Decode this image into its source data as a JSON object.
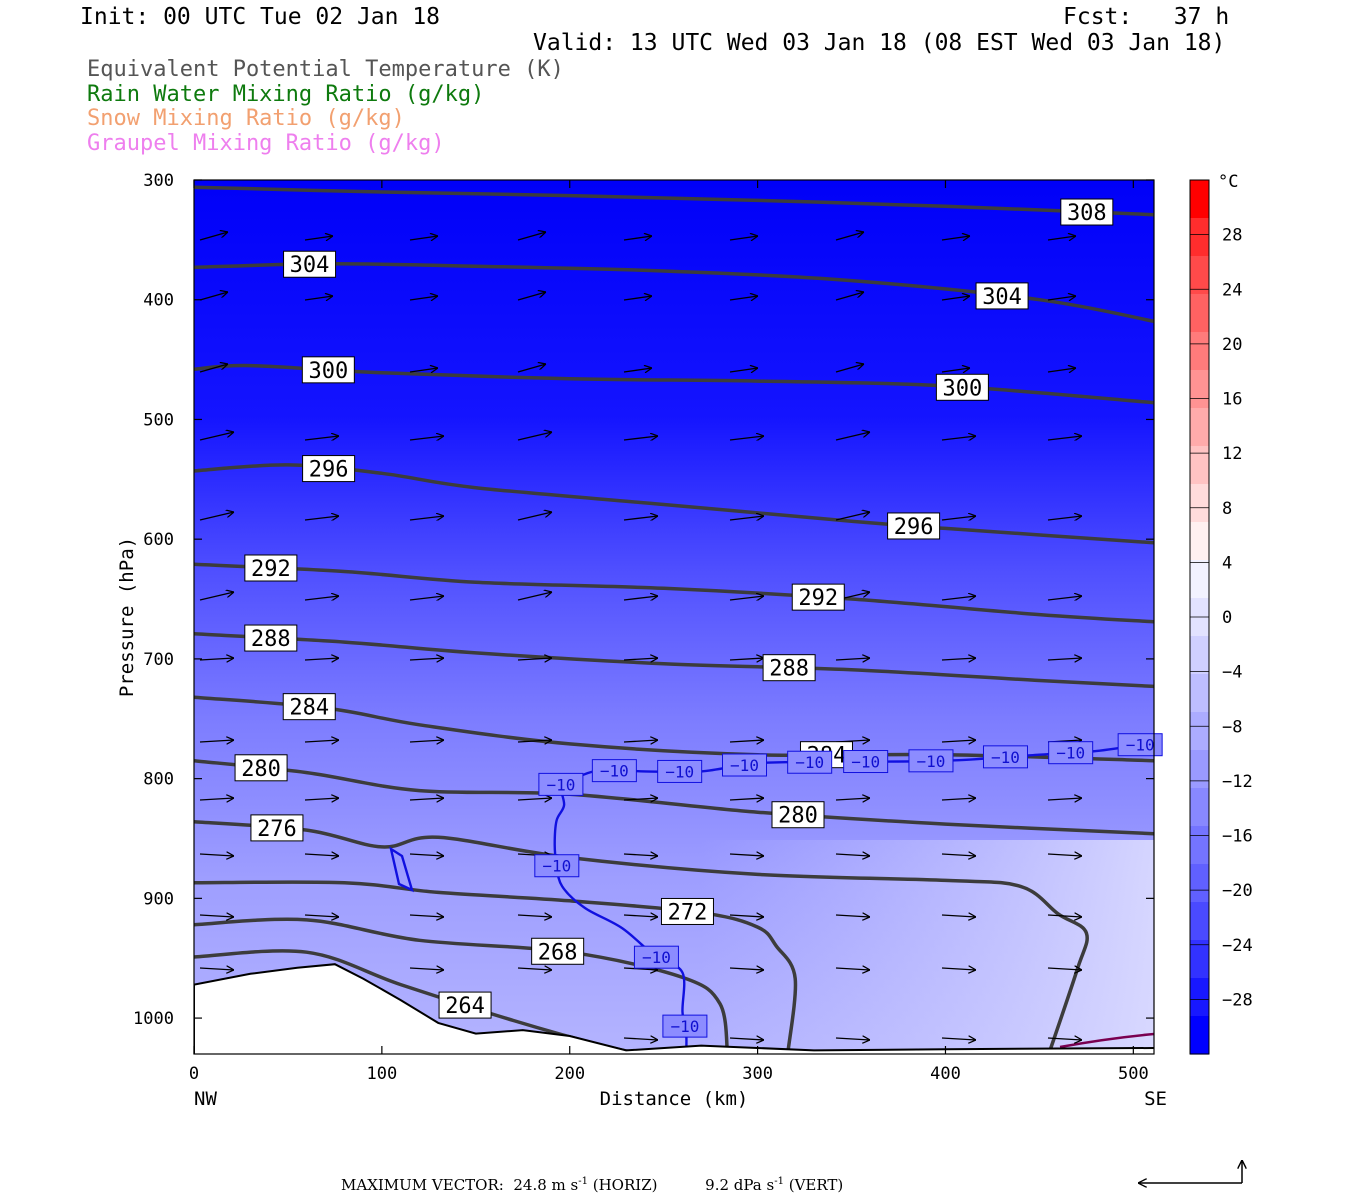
{
  "header": {
    "init": "Init: 00 UTC Tue 02 Jan 18",
    "fcst": "Fcst:   37 h",
    "valid": "Valid: 13 UTC Wed 03 Jan 18 (08 EST Wed 03 Jan 18)"
  },
  "legend": [
    {
      "label": "Equivalent Potential Temperature (K)",
      "color": "#555555"
    },
    {
      "label": "Rain Water Mixing Ratio (g/kg)",
      "color": "#0e7a0e"
    },
    {
      "label": "Snow Mixing Ratio (g/kg)",
      "color": "#f2a070"
    },
    {
      "label": "Graupel Mixing Ratio (g/kg)",
      "color": "#ee7fee"
    }
  ],
  "footer": {
    "prefix": "MAXIMUM VECTOR:  24.8 m s",
    "exp1": "-1",
    "mid": " (HORIZ)          9.2 dPa s",
    "exp2": "-1",
    "suffix": " (VERT)"
  },
  "chart_data": {
    "type": "cross-section",
    "xlabel": "Distance (km)",
    "ylabel": "Pressure (hPa)",
    "x_ticks": [
      0,
      100,
      200,
      300,
      400,
      500
    ],
    "y_ticks": [
      300,
      400,
      500,
      600,
      700,
      800,
      900,
      1000
    ],
    "xlim": [
      0,
      511
    ],
    "ylim": [
      1030,
      300
    ],
    "left_end_label": "NW",
    "right_end_label": "SE",
    "colorbar": {
      "unit": "°C",
      "tick_labels": [
        "28",
        "24",
        "20",
        "16",
        "12",
        "8",
        "4",
        "0",
        "−4",
        "−8",
        "−12",
        "−16",
        "−20",
        "−24",
        "−28"
      ],
      "tick_values": [
        28,
        24,
        20,
        16,
        12,
        8,
        4,
        0,
        -4,
        -8,
        -12,
        -16,
        -20,
        -24,
        -28
      ],
      "range": [
        -32,
        32
      ],
      "colors_top_to_bottom": [
        "#ff0000",
        "#ff2d2d",
        "#ff4a4a",
        "#ff6262",
        "#ff7b7b",
        "#ff9393",
        "#ffabab",
        "#ffc3c3",
        "#ffdbdb",
        "#fff0f0",
        "#f2f2ff",
        "#e2e2ff",
        "#d0d0ff",
        "#bebeff",
        "#acacff",
        "#9a9aff",
        "#8888ff",
        "#7474ff",
        "#6060ff",
        "#4a4aff",
        "#3232ff",
        "#1818ff",
        "#0000ff"
      ]
    },
    "theta_e_contours": [
      {
        "label": "308",
        "points": [
          [
            0,
            306
          ],
          [
            100,
            310
          ],
          [
            200,
            313
          ],
          [
            300,
            317
          ],
          [
            400,
            322
          ],
          [
            511,
            329
          ]
        ]
      },
      {
        "label": "304",
        "points": [
          [
            0,
            373
          ],
          [
            70,
            370
          ],
          [
            150,
            372
          ],
          [
            250,
            376
          ],
          [
            350,
            384
          ],
          [
            450,
            400
          ],
          [
            511,
            418
          ]
        ]
      },
      {
        "label": "300",
        "points": [
          [
            0,
            458
          ],
          [
            30,
            455
          ],
          [
            100,
            461
          ],
          [
            200,
            466
          ],
          [
            300,
            468
          ],
          [
            400,
            472
          ],
          [
            511,
            486
          ]
        ]
      },
      {
        "label": "296",
        "points": [
          [
            0,
            543
          ],
          [
            50,
            538
          ],
          [
            100,
            545
          ],
          [
            150,
            557
          ],
          [
            250,
            571
          ],
          [
            350,
            585
          ],
          [
            400,
            591
          ],
          [
            511,
            603
          ]
        ]
      },
      {
        "label": "292",
        "points": [
          [
            0,
            621
          ],
          [
            80,
            627
          ],
          [
            150,
            636
          ],
          [
            250,
            641
          ],
          [
            350,
            650
          ],
          [
            450,
            663
          ],
          [
            511,
            669
          ]
        ]
      },
      {
        "label": "288",
        "points": [
          [
            0,
            679
          ],
          [
            80,
            686
          ],
          [
            150,
            695
          ],
          [
            250,
            704
          ],
          [
            350,
            709
          ],
          [
            450,
            718
          ],
          [
            511,
            723
          ]
        ]
      },
      {
        "label": "284",
        "points": [
          [
            0,
            732
          ],
          [
            70,
            741
          ],
          [
            120,
            755
          ],
          [
            200,
            771
          ],
          [
            300,
            780
          ],
          [
            400,
            780
          ],
          [
            511,
            785
          ]
        ]
      },
      {
        "label": "280",
        "points": [
          [
            0,
            785
          ],
          [
            60,
            795
          ],
          [
            120,
            810
          ],
          [
            200,
            813
          ],
          [
            300,
            828
          ],
          [
            400,
            838
          ],
          [
            511,
            846
          ]
        ]
      },
      {
        "label": "276",
        "points": [
          [
            0,
            836
          ],
          [
            60,
            843
          ],
          [
            100,
            857
          ],
          [
            130,
            849
          ],
          [
            200,
            866
          ],
          [
            300,
            880
          ],
          [
            400,
            885
          ],
          [
            440,
            890
          ],
          [
            460,
            913
          ],
          [
            475,
            929
          ],
          [
            470,
            960
          ],
          [
            455,
            1030
          ]
        ]
      },
      {
        "label": "272",
        "points": [
          [
            0,
            887
          ],
          [
            80,
            887
          ],
          [
            130,
            895
          ],
          [
            200,
            902
          ],
          [
            270,
            912
          ],
          [
            300,
            924
          ],
          [
            310,
            940
          ],
          [
            320,
            967
          ],
          [
            316,
            1030
          ]
        ]
      },
      {
        "label": "268",
        "points": [
          [
            0,
            922
          ],
          [
            60,
            918
          ],
          [
            120,
            935
          ],
          [
            200,
            945
          ],
          [
            260,
            966
          ],
          [
            280,
            988
          ],
          [
            284,
            1030
          ]
        ]
      },
      {
        "label": "264",
        "points": [
          [
            0,
            949
          ],
          [
            60,
            945
          ],
          [
            110,
            972
          ],
          [
            170,
            1002
          ],
          [
            220,
            1024
          ],
          [
            240,
            1030
          ]
        ]
      }
    ],
    "temperature_contour": {
      "label": "−10",
      "value": -10,
      "points": [
        [
          262,
          1030
        ],
        [
          262,
          1013
        ],
        [
          260,
          995
        ],
        [
          260,
          962
        ],
        [
          246,
          949
        ],
        [
          228,
          925
        ],
        [
          208,
          908
        ],
        [
          196,
          890
        ],
        [
          193,
          872
        ],
        [
          192,
          855
        ],
        [
          193,
          835
        ],
        [
          197,
          822
        ],
        [
          195,
          805
        ],
        [
          201,
          801
        ],
        [
          216,
          793
        ],
        [
          240,
          794
        ],
        [
          270,
          794
        ],
        [
          300,
          787
        ],
        [
          340,
          786
        ],
        [
          400,
          785
        ],
        [
          450,
          780
        ],
        [
          480,
          777
        ],
        [
          511,
          770
        ]
      ]
    },
    "terrain_hpa": {
      "x": [
        0,
        30,
        55,
        75,
        90,
        110,
        130,
        150,
        175,
        200,
        230,
        270,
        330,
        400,
        511
      ],
      "p": [
        972,
        963,
        958,
        955,
        967,
        985,
        1004,
        1013,
        1010,
        1015,
        1027,
        1023,
        1027,
        1026,
        1025
      ]
    }
  }
}
